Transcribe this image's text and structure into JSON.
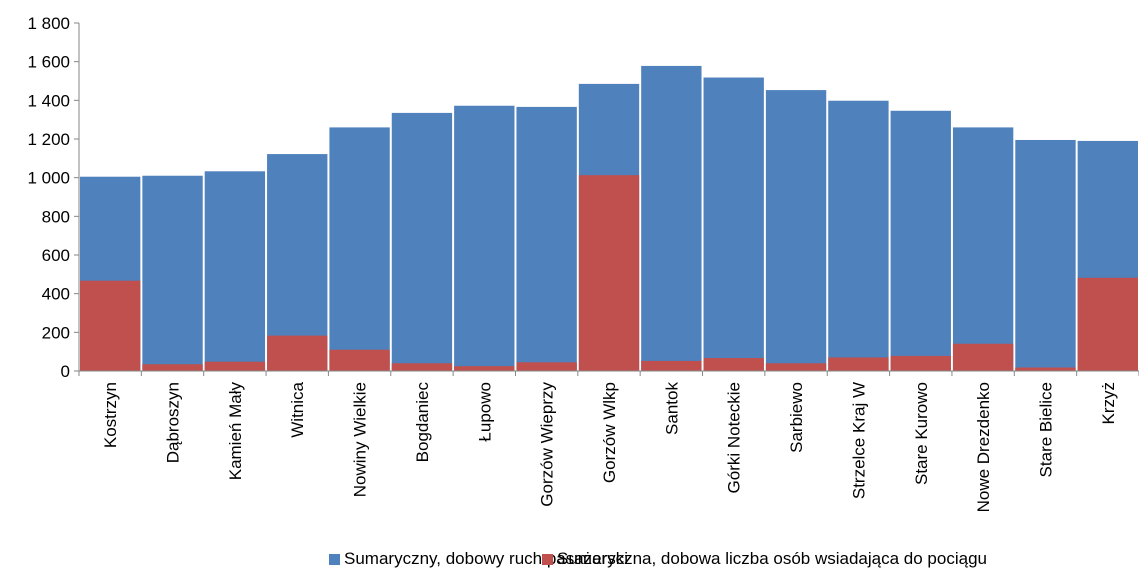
{
  "chart_data": {
    "type": "bar",
    "stacked": false,
    "overlapping": true,
    "categories": [
      "Kostrzyn",
      "Dąbroszyn",
      "Kamień Mały",
      "Witnica",
      "Nowiny Wielkie",
      "Bogdaniec",
      "Łupowo",
      "Gorzów Wieprzy",
      "Gorzów Wlkp",
      "Santok",
      "Górki Noteckie",
      "Sarbiewo",
      "Strzelce Kraj W",
      "Stare Kurowo",
      "Nowe Drezdenko",
      "Stare Bielice",
      "Krzyż"
    ],
    "series": [
      {
        "name": "Sumaryczny, dobowy ruch pasażerski",
        "color": "#4F81BD",
        "values": [
          1005,
          1010,
          1033,
          1122,
          1260,
          1335,
          1372,
          1366,
          1485,
          1578,
          1518,
          1453,
          1398,
          1346,
          1260,
          1195,
          1190
        ]
      },
      {
        "name": "Sumaryczna, dobowa liczba osób wsiadająca do pociągu",
        "color": "#C0504D",
        "values": [
          467,
          35,
          48,
          183,
          110,
          40,
          25,
          45,
          1013,
          52,
          67,
          40,
          70,
          78,
          141,
          18,
          482
        ]
      }
    ],
    "yticks": [
      "0",
      "200",
      "400",
      "600",
      "800",
      "1 000",
      "1 200",
      "1 400",
      "1 600",
      "1 800"
    ],
    "ylim": [
      0,
      1800
    ],
    "grid": false,
    "legend_position": "bottom"
  }
}
